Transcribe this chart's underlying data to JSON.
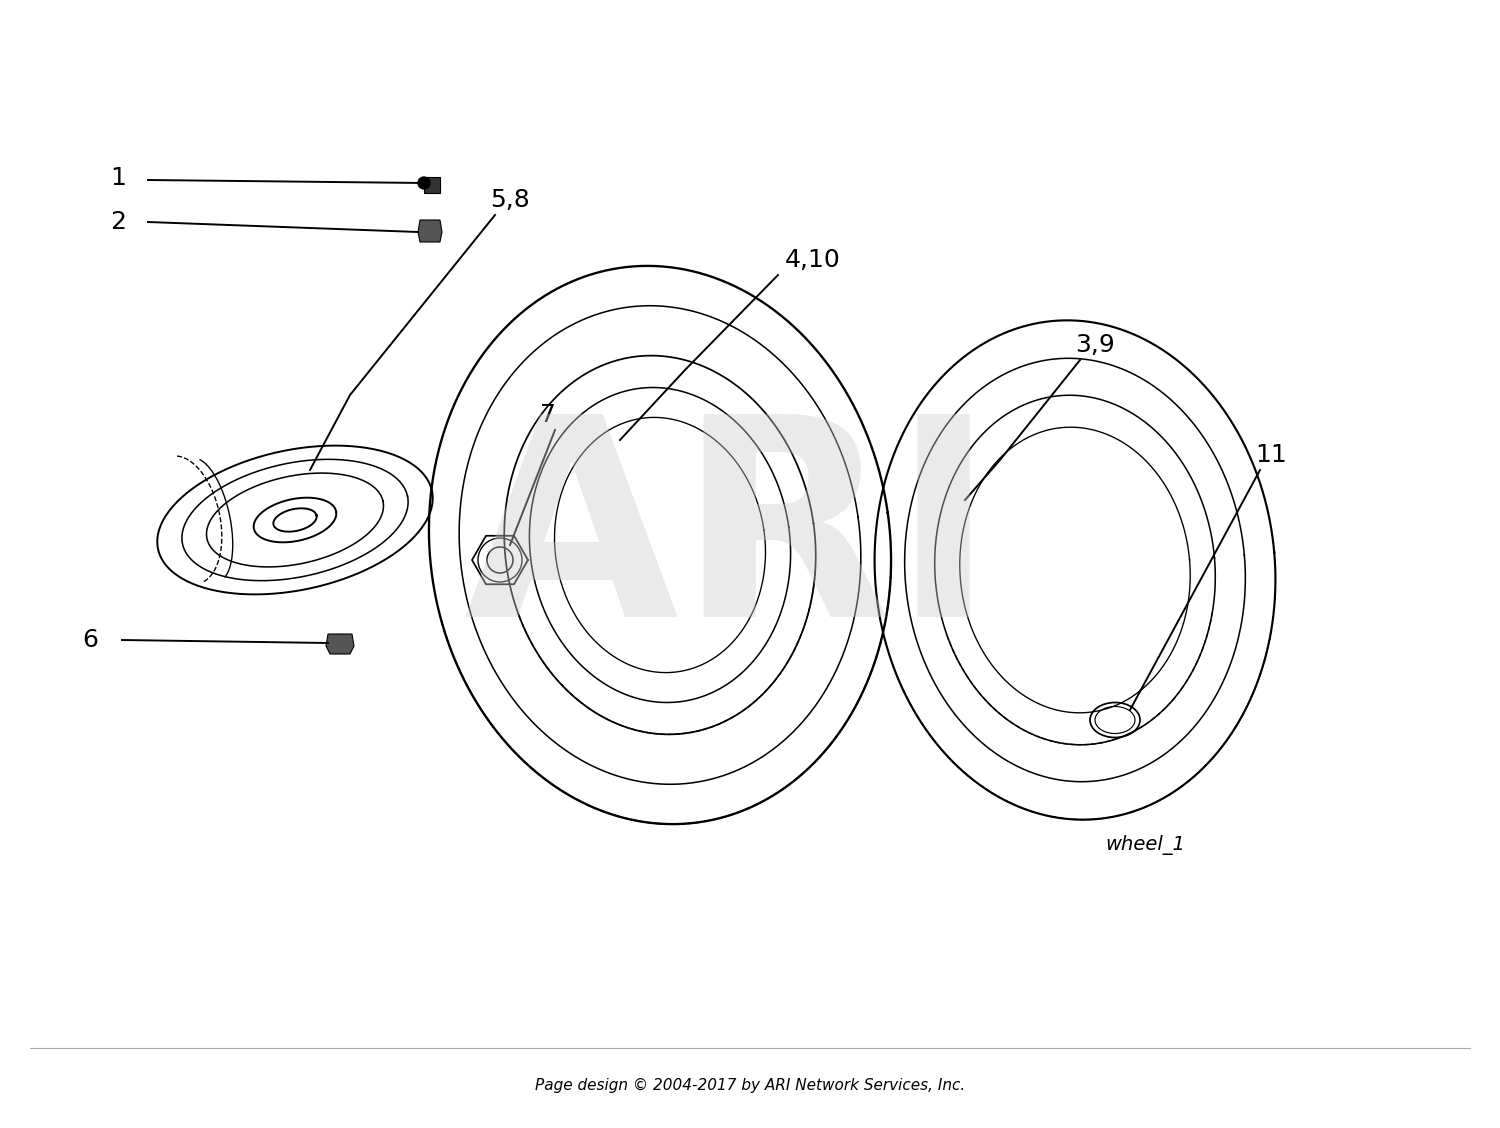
{
  "bg_color": "#ffffff",
  "fig_width": 15.0,
  "fig_height": 11.28,
  "dpi": 100,
  "footer_text": "Page design © 2004-2017 by ARI Network Services, Inc.",
  "watermark_text": "ARI",
  "diagram_label": "wheel_1",
  "line_color": "#000000",
  "lw": 1.4
}
